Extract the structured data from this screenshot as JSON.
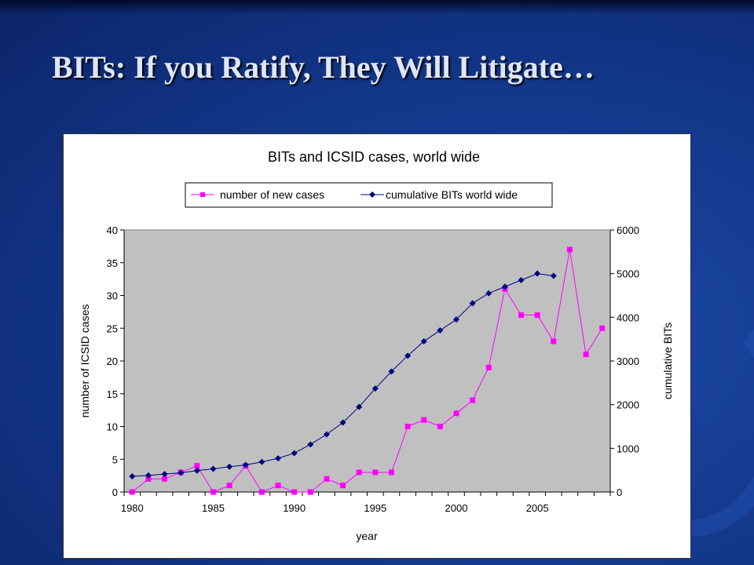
{
  "slide": {
    "title": "BITs: If you Ratify, They Will Litigate…"
  },
  "colors": {
    "cases": "#ff00ff",
    "bits": "#000080",
    "plot_bg": "#c0c0c0"
  },
  "chart_data": {
    "type": "line",
    "title": "BITs and ICSID cases, world wide",
    "xlabel": "year",
    "ylabel_left": "number of ICSID cases",
    "ylabel_right": "cumulative BITs",
    "xlim": [
      1980,
      2009
    ],
    "ylim_left": [
      0,
      40
    ],
    "ylim_right": [
      0,
      6000
    ],
    "xticks": [
      1980,
      1985,
      1990,
      1995,
      2000,
      2005
    ],
    "yticks_left": [
      0,
      5,
      10,
      15,
      20,
      25,
      30,
      35,
      40
    ],
    "yticks_right": [
      0,
      1000,
      2000,
      3000,
      4000,
      5000,
      6000
    ],
    "grid": false,
    "legend_position": "top",
    "series": [
      {
        "name": "number of new cases",
        "axis": "left",
        "marker": "square",
        "x": [
          1980,
          1981,
          1982,
          1983,
          1984,
          1985,
          1986,
          1987,
          1988,
          1989,
          1990,
          1991,
          1992,
          1993,
          1994,
          1995,
          1996,
          1997,
          1998,
          1999,
          2000,
          2001,
          2002,
          2003,
          2004,
          2005,
          2006,
          2007,
          2008,
          2009
        ],
        "y": [
          0,
          2,
          2,
          3,
          4,
          0,
          1,
          4,
          0,
          1,
          0,
          0,
          2,
          1,
          3,
          3,
          3,
          10,
          11,
          10,
          12,
          14,
          19,
          31,
          27,
          27,
          23,
          37,
          21,
          25
        ]
      },
      {
        "name": "cumulative BITs world wide",
        "axis": "right",
        "marker": "diamond",
        "x": [
          1980,
          1981,
          1982,
          1983,
          1984,
          1985,
          1986,
          1987,
          1988,
          1989,
          1990,
          1991,
          1992,
          1993,
          1994,
          1995,
          1996,
          1997,
          1998,
          1999,
          2000,
          2001,
          2002,
          2003,
          2004,
          2005,
          2006
        ],
        "y": [
          360,
          380,
          410,
          440,
          490,
          530,
          580,
          620,
          690,
          770,
          890,
          1090,
          1320,
          1590,
          1950,
          2370,
          2760,
          3120,
          3450,
          3700,
          3950,
          4320,
          4550,
          4700,
          4850,
          5000,
          4950
        ]
      }
    ]
  }
}
